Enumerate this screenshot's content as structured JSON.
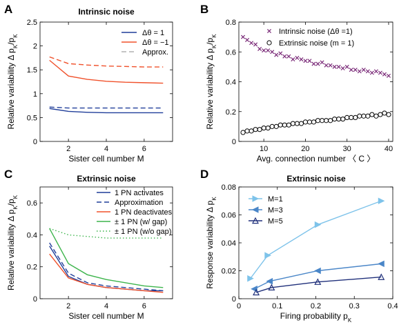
{
  "chart_data": [
    {
      "id": "A",
      "type": "line",
      "panel_label": "A",
      "title": "Intrinsic noise",
      "xlabel": "Sister cell number M",
      "ylabel": "Relative variability Δ pK/pK",
      "ylabel_parts": [
        "Relative variability Δ p",
        "K",
        "/p",
        "K"
      ],
      "xlim": [
        0.5,
        7.5
      ],
      "ylim": [
        0,
        2.5
      ],
      "xticks": [
        2,
        4,
        6
      ],
      "yticks": [
        0,
        0.5,
        1,
        1.5,
        2,
        2.5
      ],
      "ytick_labels": [
        "0",
        "0.5",
        "1",
        "1.5",
        "2",
        "2.5"
      ],
      "x": [
        1,
        2,
        3,
        4,
        5,
        6,
        7
      ],
      "series": [
        {
          "color": "#1f3d99",
          "dash": "solid",
          "values": [
            0.69,
            0.63,
            0.61,
            0.6,
            0.6,
            0.6,
            0.6
          ]
        },
        {
          "color": "#1f3d99",
          "dash": "dashed",
          "values": [
            0.72,
            0.7,
            0.7,
            0.7,
            0.7,
            0.7,
            0.7
          ]
        },
        {
          "color": "#f0502a",
          "dash": "solid",
          "values": [
            1.7,
            1.37,
            1.3,
            1.26,
            1.24,
            1.23,
            1.22
          ]
        },
        {
          "color": "#f0502a",
          "dash": "dashed",
          "values": [
            1.77,
            1.63,
            1.6,
            1.58,
            1.57,
            1.56,
            1.56
          ]
        }
      ],
      "legend": {
        "position": "top-right",
        "entries": [
          {
            "label": "Δθ = 1",
            "color": "#1f3d99",
            "dash": "solid"
          },
          {
            "label": "Δθ = −1",
            "color": "#f0502a",
            "dash": "solid"
          },
          {
            "label": "Approx.",
            "color": "#b0b0b0",
            "dash": "dashed"
          }
        ]
      }
    },
    {
      "id": "B",
      "type": "scatter",
      "panel_label": "B",
      "title": "",
      "xlabel": "Avg. connection number 〈 C 〉",
      "ylabel": "Relative variability Δ pK/pK",
      "ylabel_parts": [
        "Relative variability Δ p",
        "K",
        "/p",
        "K"
      ],
      "xlim": [
        4,
        41
      ],
      "ylim": [
        0,
        0.8
      ],
      "xticks": [
        10,
        20,
        30,
        40
      ],
      "yticks": [
        0,
        0.2,
        0.4,
        0.6,
        0.8
      ],
      "ytick_labels": [
        "0",
        "0.2",
        "0.4",
        "0.6",
        "0.8"
      ],
      "x": [
        5,
        6,
        7,
        8,
        9,
        10,
        11,
        12,
        13,
        14,
        15,
        16,
        17,
        18,
        19,
        20,
        21,
        22,
        23,
        24,
        25,
        26,
        27,
        28,
        29,
        30,
        31,
        32,
        33,
        34,
        35,
        36,
        37,
        38,
        39,
        40
      ],
      "series": [
        {
          "name": "Intrinsic noise  (Δθ =1)",
          "marker": "x",
          "color": "#7a2a78",
          "values": [
            0.7,
            0.68,
            0.66,
            0.65,
            0.62,
            0.61,
            0.61,
            0.6,
            0.58,
            0.59,
            0.57,
            0.57,
            0.55,
            0.56,
            0.55,
            0.54,
            0.54,
            0.52,
            0.52,
            0.53,
            0.51,
            0.51,
            0.5,
            0.5,
            0.49,
            0.5,
            0.48,
            0.48,
            0.47,
            0.48,
            0.47,
            0.46,
            0.47,
            0.46,
            0.45,
            0.44
          ]
        },
        {
          "name": "Extrinsic noise (m = 1)",
          "marker": "o",
          "color": "#000000",
          "values": [
            0.06,
            0.07,
            0.07,
            0.08,
            0.08,
            0.09,
            0.09,
            0.1,
            0.1,
            0.11,
            0.11,
            0.11,
            0.12,
            0.12,
            0.12,
            0.13,
            0.13,
            0.13,
            0.14,
            0.14,
            0.14,
            0.14,
            0.15,
            0.15,
            0.15,
            0.16,
            0.16,
            0.16,
            0.17,
            0.17,
            0.17,
            0.18,
            0.17,
            0.18,
            0.19,
            0.18
          ]
        }
      ],
      "legend": {
        "position": "top-right",
        "entries": [
          {
            "label": "Intrinsic noise  (Δθ =1)",
            "marker": "x",
            "color": "#7a2a78"
          },
          {
            "label": "Extrinsic noise (m = 1)",
            "marker": "o",
            "color": "#000000"
          }
        ]
      }
    },
    {
      "id": "C",
      "type": "line",
      "panel_label": "C",
      "title": "Extrinsic noise",
      "xlabel": "Sister cell number M",
      "ylabel": "Relative variability Δ pK/pK",
      "ylabel_parts": [
        "Relative variability Δ p",
        "K",
        "/p",
        "K"
      ],
      "xlim": [
        0.5,
        7.5
      ],
      "ylim": [
        0,
        0.7
      ],
      "xticks": [
        2,
        4,
        6
      ],
      "yticks": [
        0,
        0.2,
        0.4,
        0.6
      ],
      "ytick_labels": [
        "0",
        "0.2",
        "0.4",
        "0.6"
      ],
      "x": [
        1,
        2,
        3,
        4,
        5,
        6,
        7
      ],
      "series": [
        {
          "name": "1 PN activates",
          "color": "#1f3d99",
          "dash": "solid",
          "values": [
            0.33,
            0.14,
            0.09,
            0.07,
            0.06,
            0.05,
            0.05
          ]
        },
        {
          "name": "Approximation",
          "color": "#1f3d99",
          "dash": "dashed",
          "values": [
            0.35,
            0.16,
            0.1,
            0.08,
            0.07,
            0.06,
            0.05
          ]
        },
        {
          "name": "1 PN deactivates",
          "color": "#f0502a",
          "dash": "solid",
          "values": [
            0.28,
            0.13,
            0.09,
            0.07,
            0.06,
            0.05,
            0.04
          ]
        },
        {
          "name": "± 1 PN (w/ gap)",
          "color": "#3cb44b",
          "dash": "solid",
          "values": [
            0.44,
            0.22,
            0.15,
            0.12,
            0.1,
            0.08,
            0.07
          ]
        },
        {
          "name": "± 1 PN (w/o gap)",
          "color": "#3cb44b",
          "dash": "dotted",
          "values": [
            0.44,
            0.4,
            0.39,
            0.38,
            0.38,
            0.38,
            0.38
          ]
        }
      ],
      "legend": {
        "position": "top-right",
        "entries": [
          {
            "label": "1 PN activates",
            "color": "#1f3d99",
            "dash": "solid"
          },
          {
            "label": "Approximation",
            "color": "#1f3d99",
            "dash": "dashed"
          },
          {
            "label": "1 PN deactivates",
            "color": "#f0502a",
            "dash": "solid"
          },
          {
            "label": "± 1 PN (w/ gap)",
            "color": "#3cb44b",
            "dash": "solid"
          },
          {
            "label": "± 1 PN (w/o gap)",
            "color": "#3cb44b",
            "dash": "dotted"
          }
        ]
      }
    },
    {
      "id": "D",
      "type": "line",
      "panel_label": "D",
      "title": "Extrinsic noise",
      "xlabel": "Firing probability pK",
      "xlabel_parts": [
        "Firing probability p",
        "K"
      ],
      "ylabel": "Response variability Δ pK",
      "ylabel_parts": [
        "Response variability Δ p",
        "K"
      ],
      "xlim": [
        0,
        0.4
      ],
      "ylim": [
        0,
        0.08
      ],
      "xticks": [
        0,
        0.1,
        0.2,
        0.3,
        0.4
      ],
      "xtick_labels": [
        "0",
        "0.1",
        "0.2",
        "0.3",
        "0.4"
      ],
      "yticks": [
        0,
        0.02,
        0.04,
        0.06,
        0.08
      ],
      "ytick_labels": [
        "0",
        "0.02",
        "0.04",
        "0.06",
        "0.08"
      ],
      "series": [
        {
          "name": "M=1",
          "color": "#7ec3ea",
          "marker": "triangle-right",
          "x": [
            0.03,
            0.075,
            0.205,
            0.37
          ],
          "values": [
            0.0145,
            0.031,
            0.053,
            0.07
          ]
        },
        {
          "name": "M=3",
          "color": "#4a86c8",
          "marker": "triangle-left",
          "x": [
            0.04,
            0.08,
            0.205,
            0.37
          ],
          "values": [
            0.007,
            0.0125,
            0.02,
            0.025
          ]
        },
        {
          "name": "M=5",
          "color": "#1f2f7a",
          "marker": "triangle-up",
          "x": [
            0.045,
            0.085,
            0.205,
            0.37
          ],
          "values": [
            0.0045,
            0.008,
            0.012,
            0.0155
          ]
        }
      ],
      "legend": {
        "position": "top-left",
        "entries": [
          {
            "label": "M=1",
            "color": "#7ec3ea",
            "marker": "triangle-right"
          },
          {
            "label": "M=3",
            "color": "#4a86c8",
            "marker": "triangle-left"
          },
          {
            "label": "M=5",
            "color": "#1f2f7a",
            "marker": "triangle-up"
          }
        ]
      }
    }
  ]
}
